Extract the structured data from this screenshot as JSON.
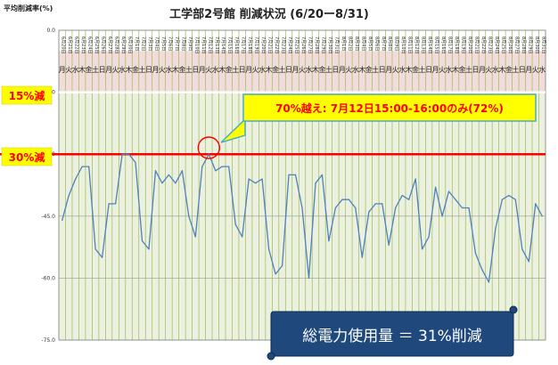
{
  "chart_data": {
    "type": "line",
    "title": "工学部2号館  削減状況 (6/20ー8/31)",
    "ylabel": "平均削減率(%)",
    "ylim": [
      -75,
      0
    ],
    "yticks": [
      "0.0",
      "-15.0",
      "-30.0",
      "-45.0",
      "-60.0",
      "-75.0"
    ],
    "grid": true,
    "x": [
      "6月20日",
      "6月21日",
      "6月22日",
      "6月23日",
      "6月24日",
      "6月25日",
      "6月26日",
      "6月27日",
      "6月28日",
      "6月29日",
      "6月30日",
      "7月1日",
      "7月2日",
      "7月3日",
      "7月4日",
      "7月5日",
      "7月6日",
      "7月7日",
      "7月8日",
      "7月9日",
      "7月10日",
      "7月11日",
      "7月12日",
      "7月13日",
      "7月14日",
      "7月15日",
      "7月16日",
      "7月17日",
      "7月18日",
      "7月19日",
      "7月20日",
      "7月21日",
      "7月22日",
      "7月23日",
      "7月24日",
      "7月25日",
      "7月26日",
      "7月27日",
      "7月28日",
      "7月29日",
      "7月30日",
      "7月31日",
      "8月1日",
      "8月2日",
      "8月3日",
      "8月4日",
      "8月5日",
      "8月6日",
      "8月7日",
      "8月8日",
      "8月9日",
      "8月10日",
      "8月11日",
      "8月12日",
      "8月13日",
      "8月14日",
      "8月15日",
      "8月16日",
      "8月17日",
      "8月18日",
      "8月19日",
      "8月20日",
      "8月21日",
      "8月22日",
      "8月23日",
      "8月24日",
      "8月25日",
      "8月26日",
      "8月27日",
      "8月28日",
      "8月29日",
      "8月30日",
      "8月31日"
    ],
    "dow": [
      "月",
      "火",
      "水",
      "木",
      "金",
      "土",
      "日",
      "月",
      "火",
      "水",
      "木",
      "金",
      "土",
      "日",
      "月",
      "火",
      "水",
      "木",
      "金",
      "土",
      "日",
      "月",
      "火",
      "水",
      "木",
      "金",
      "土",
      "日",
      "月",
      "火",
      "水",
      "木",
      "金",
      "土",
      "日",
      "月",
      "火",
      "水",
      "木",
      "金",
      "土",
      "日",
      "月",
      "火",
      "水",
      "木",
      "金",
      "土",
      "日",
      "月",
      "火",
      "水",
      "木",
      "金",
      "土",
      "日",
      "月",
      "火",
      "水",
      "木",
      "金",
      "土",
      "日",
      "月",
      "火",
      "水",
      "木",
      "金",
      "土",
      "日",
      "月",
      "火",
      "水"
    ],
    "series": [
      {
        "values": [
          -46,
          -40,
          -36,
          -33,
          -33,
          -53,
          -55,
          -42,
          -42,
          -30,
          -30,
          -32,
          -51,
          -53,
          -34,
          -37,
          -35,
          -37,
          -34,
          -45,
          -50,
          -33,
          -30,
          -34,
          -33,
          -33,
          -47,
          -50,
          -36,
          -37,
          -36,
          -53,
          -59,
          -57,
          -35,
          -35,
          -43,
          -60,
          -37,
          -35,
          -51,
          -43,
          -41,
          -41,
          -43,
          -55,
          -44,
          -42,
          -42,
          -52,
          -43,
          -40,
          -41,
          -36,
          -53,
          -50,
          -38,
          -45,
          -39,
          -41,
          -43,
          -43,
          -54,
          -58,
          -61,
          -48,
          -41,
          -40,
          -41,
          -53,
          -56,
          -42,
          -45
        ]
      }
    ],
    "reference_lines": [
      {
        "label": "15%減",
        "value": -15
      },
      {
        "label": "30%減",
        "value": -30
      }
    ],
    "annotation": "70%越え: 7月12日15:00-16:00のみ(72%)",
    "annotation_target": "7月12日",
    "summary": "総電力使用量 ＝ 31%削減",
    "colors": {
      "line": "#4f81bd",
      "grid": "#9bbb59",
      "band_top": "#f2dcdb",
      "band_bottom": "#ebf1de",
      "ref_15": "#ffffff",
      "ref_30": "#ff0000",
      "label_box_fill": "#ffff00",
      "annot_fill": "#ffff00",
      "annot_stroke": "#4bacc6",
      "banner_fill": "#1f497d"
    }
  }
}
